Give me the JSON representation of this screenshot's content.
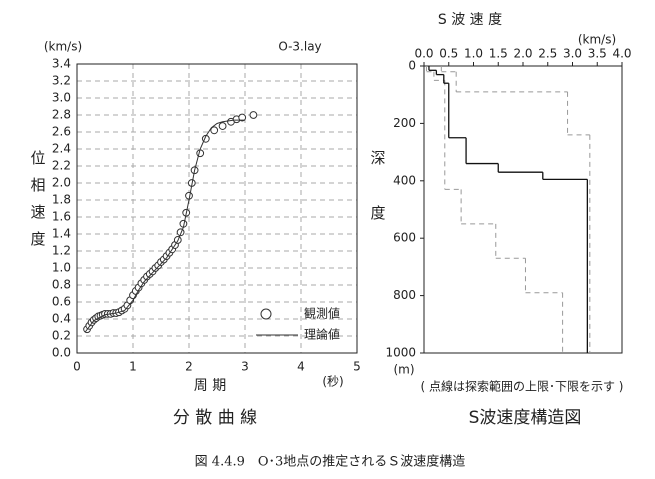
{
  "chart_data": [
    {
      "type": "scatter",
      "unit_label": "(km/s)",
      "annotation": "O-3.lay",
      "ylabel": "位相速度",
      "xlabel": "周 期",
      "xunit": "(秒)",
      "caption": "分 散 曲 線",
      "xlim": [
        0,
        5
      ],
      "ylim": [
        0,
        3.4
      ],
      "grid": true,
      "xticks": [
        0,
        1,
        2,
        3,
        4,
        5
      ],
      "yticks": [
        {
          "value": 0,
          "label": "0.0"
        },
        0.2,
        0.4,
        0.6,
        0.8,
        {
          "value": 1,
          "label": "1.0"
        },
        1.2,
        1.4,
        1.6,
        1.8,
        {
          "value": 2,
          "label": "2.0"
        },
        2.2,
        2.4,
        2.6,
        2.8,
        {
          "value": 3,
          "label": "3.0"
        },
        3.2,
        3.4
      ],
      "series": [
        {
          "name": "観測値",
          "marker": "circle",
          "color": "#333",
          "x": [
            0.18,
            0.22,
            0.26,
            0.3,
            0.34,
            0.38,
            0.42,
            0.46,
            0.5,
            0.55,
            0.6,
            0.65,
            0.7,
            0.75,
            0.8,
            0.85,
            0.9,
            0.95,
            1.0,
            1.05,
            1.1,
            1.15,
            1.2,
            1.25,
            1.3,
            1.35,
            1.4,
            1.45,
            1.5,
            1.55,
            1.6,
            1.65,
            1.7,
            1.75,
            1.8,
            1.85,
            1.9,
            1.95,
            2.0,
            2.05,
            2.1,
            2.2,
            2.3,
            2.45,
            2.6,
            2.75,
            2.85,
            2.95,
            3.15
          ],
          "values": [
            0.28,
            0.32,
            0.36,
            0.39,
            0.41,
            0.43,
            0.44,
            0.45,
            0.46,
            0.46,
            0.46,
            0.47,
            0.47,
            0.48,
            0.5,
            0.52,
            0.56,
            0.62,
            0.68,
            0.73,
            0.77,
            0.82,
            0.86,
            0.9,
            0.93,
            0.96,
            1.0,
            1.03,
            1.07,
            1.1,
            1.14,
            1.18,
            1.22,
            1.27,
            1.33,
            1.42,
            1.52,
            1.65,
            1.85,
            2.0,
            2.15,
            2.35,
            2.52,
            2.62,
            2.67,
            2.72,
            2.75,
            2.77,
            2.8
          ]
        },
        {
          "name": "理論値",
          "marker": "line",
          "color": "#333",
          "x": [
            0.15,
            0.3,
            0.5,
            0.7,
            0.85,
            1.0,
            1.1,
            1.2,
            1.4,
            1.6,
            1.8,
            1.9,
            2.0,
            2.1,
            2.2,
            2.3,
            2.4,
            2.5,
            2.6,
            2.8,
            3.0
          ],
          "values": [
            0.25,
            0.38,
            0.45,
            0.47,
            0.5,
            0.62,
            0.74,
            0.84,
            0.98,
            1.12,
            1.32,
            1.48,
            1.8,
            2.15,
            2.4,
            2.55,
            2.65,
            2.7,
            2.72,
            2.74,
            2.74
          ]
        }
      ]
    },
    {
      "type": "step",
      "title": "S 波 速 度",
      "unit_label": "(km/s)",
      "ylabel": "深度",
      "yunit": "(m)",
      "note": "( 点線は探索範囲の上限･下限を示す )",
      "caption": "S波速度構造図",
      "xlim": [
        0,
        4
      ],
      "ylim": [
        0,
        1000
      ],
      "y_inverted": true,
      "x_axis_top": true,
      "xticks": [
        {
          "value": 0,
          "label": "0.0"
        },
        0.5,
        {
          "value": 1,
          "label": "1.0"
        },
        1.5,
        {
          "value": 2,
          "label": "2.0"
        },
        2.5,
        {
          "value": 3,
          "label": "3.0"
        },
        3.5,
        {
          "value": 4,
          "label": "4.0"
        }
      ],
      "yticks": [
        0,
        200,
        400,
        600,
        800,
        1000
      ],
      "profiles": [
        {
          "style": "dashed",
          "color": "#999",
          "depths": [
            0,
            20,
            90,
            240,
            1000
          ],
          "values": [
            0.35,
            0.65,
            2.9,
            3.35
          ]
        },
        {
          "style": "dashed",
          "color": "#999",
          "depths": [
            0,
            20,
            50,
            430,
            550,
            670,
            790,
            1000
          ],
          "values": [
            0.05,
            0.2,
            0.42,
            0.75,
            1.45,
            2.05,
            2.8
          ]
        },
        {
          "style": "solid",
          "color": "#111",
          "depths": [
            0,
            15,
            30,
            60,
            250,
            340,
            370,
            395,
            1000
          ],
          "values": [
            0.1,
            0.25,
            0.4,
            0.5,
            0.85,
            1.5,
            2.4,
            3.3
          ]
        }
      ]
    }
  ],
  "caption": "図 4.4.9　O･3地点の推定されるＳ波速度構造"
}
